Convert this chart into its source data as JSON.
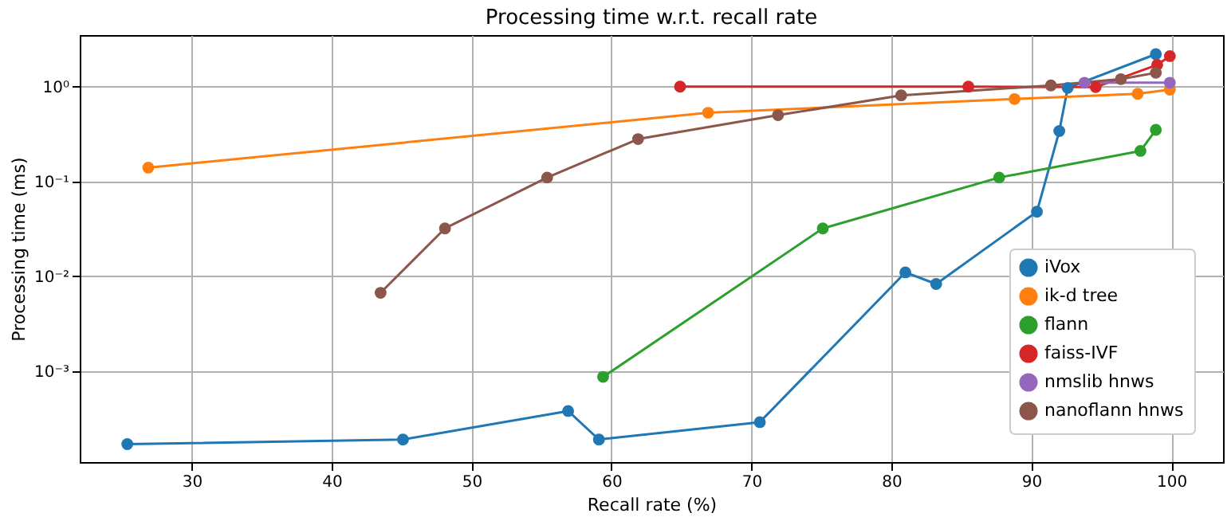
{
  "chart_data": {
    "type": "line",
    "title": "Processing time w.r.t. recall rate",
    "xlabel": "Recall rate (%)",
    "ylabel": "Processing time (ms)",
    "xlim": [
      22,
      103.7
    ],
    "xticks": [
      30,
      40,
      50,
      60,
      70,
      80,
      90,
      100
    ],
    "ylim": [
      0.00011,
      3.5
    ],
    "yticks": [
      {
        "value": 0.001,
        "label": "10⁻³"
      },
      {
        "value": 0.01,
        "label": "10⁻²"
      },
      {
        "value": 0.1,
        "label": "10⁻¹"
      },
      {
        "value": 1,
        "label": "10⁰"
      }
    ],
    "log": "y",
    "grid": true,
    "legend": "bottom right",
    "marker": "circle",
    "line_style": "solid",
    "series": [
      {
        "name": "iVox",
        "color": "#1f77b4",
        "x": [
          25.4,
          45.1,
          56.9,
          59.1,
          70.6,
          81.0,
          83.2,
          90.4,
          92.0,
          92.6,
          98.9
        ],
        "values": [
          0.00017,
          0.00019,
          0.00038,
          0.00019,
          0.00029,
          0.011,
          0.0083,
          0.048,
          0.34,
          0.97,
          2.2
        ]
      },
      {
        "name": "ik-d tree",
        "color": "#ff7f0e",
        "x": [
          26.9,
          66.9,
          88.8,
          97.6,
          99.9
        ],
        "values": [
          0.14,
          0.53,
          0.74,
          0.84,
          0.93
        ]
      },
      {
        "name": "flann",
        "color": "#2ca02c",
        "x": [
          59.4,
          75.1,
          87.7,
          97.8,
          98.9
        ],
        "values": [
          0.00087,
          0.032,
          0.11,
          0.21,
          0.35
        ]
      },
      {
        "name": "faiss-IVF",
        "color": "#d62728",
        "x": [
          64.9,
          85.5,
          94.6,
          99.0,
          99.9
        ],
        "values": [
          1.0,
          1.0,
          0.99,
          1.7,
          2.1
        ]
      },
      {
        "name": "nmslib hnws",
        "color": "#9467bd",
        "x": [
          93.8,
          99.9
        ],
        "values": [
          1.1,
          1.1
        ]
      },
      {
        "name": "nanoflann hnws",
        "color": "#8c564b",
        "x": [
          43.5,
          48.1,
          55.4,
          61.9,
          71.9,
          80.7,
          91.4,
          96.4,
          98.9
        ],
        "values": [
          0.0067,
          0.032,
          0.11,
          0.28,
          0.5,
          0.81,
          1.03,
          1.2,
          1.4
        ]
      }
    ]
  }
}
